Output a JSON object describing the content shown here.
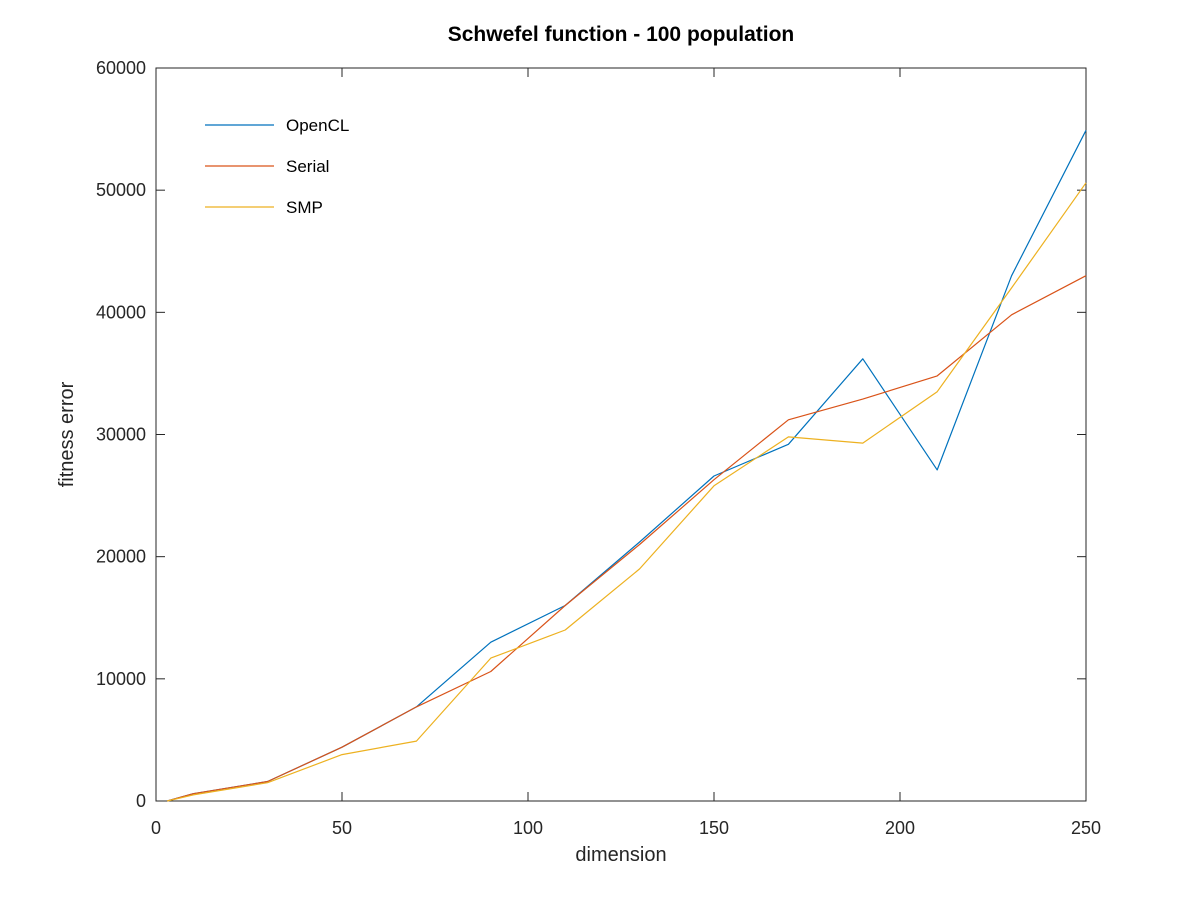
{
  "chart_data": {
    "type": "line",
    "title": "Schwefel function - 100 population",
    "xlabel": "dimension",
    "ylabel": "fitness error",
    "xlim": [
      0,
      250
    ],
    "ylim": [
      0,
      60000
    ],
    "xticks": [
      0,
      50,
      100,
      150,
      200,
      250
    ],
    "yticks": [
      0,
      10000,
      20000,
      30000,
      40000,
      50000,
      60000
    ],
    "grid": false,
    "legend_position": "top-left",
    "x": [
      3,
      10,
      30,
      50,
      70,
      90,
      110,
      130,
      150,
      170,
      190,
      210,
      230,
      250
    ],
    "series": [
      {
        "name": "OpenCL",
        "color": "#0072BD",
        "values": [
          0,
          600,
          1600,
          4400,
          7700,
          13000,
          16000,
          21200,
          26600,
          29200,
          36200,
          27100,
          43000,
          54900
        ]
      },
      {
        "name": "Serial",
        "color": "#D95319",
        "values": [
          0,
          600,
          1600,
          4400,
          7700,
          10600,
          16000,
          21000,
          26300,
          31200,
          32900,
          34800,
          39800,
          43000
        ]
      },
      {
        "name": "SMP",
        "color": "#EDB120",
        "values": [
          0,
          500,
          1500,
          3800,
          4900,
          11700,
          14000,
          19000,
          25800,
          29800,
          29300,
          33500,
          42000,
          50600
        ]
      }
    ]
  }
}
